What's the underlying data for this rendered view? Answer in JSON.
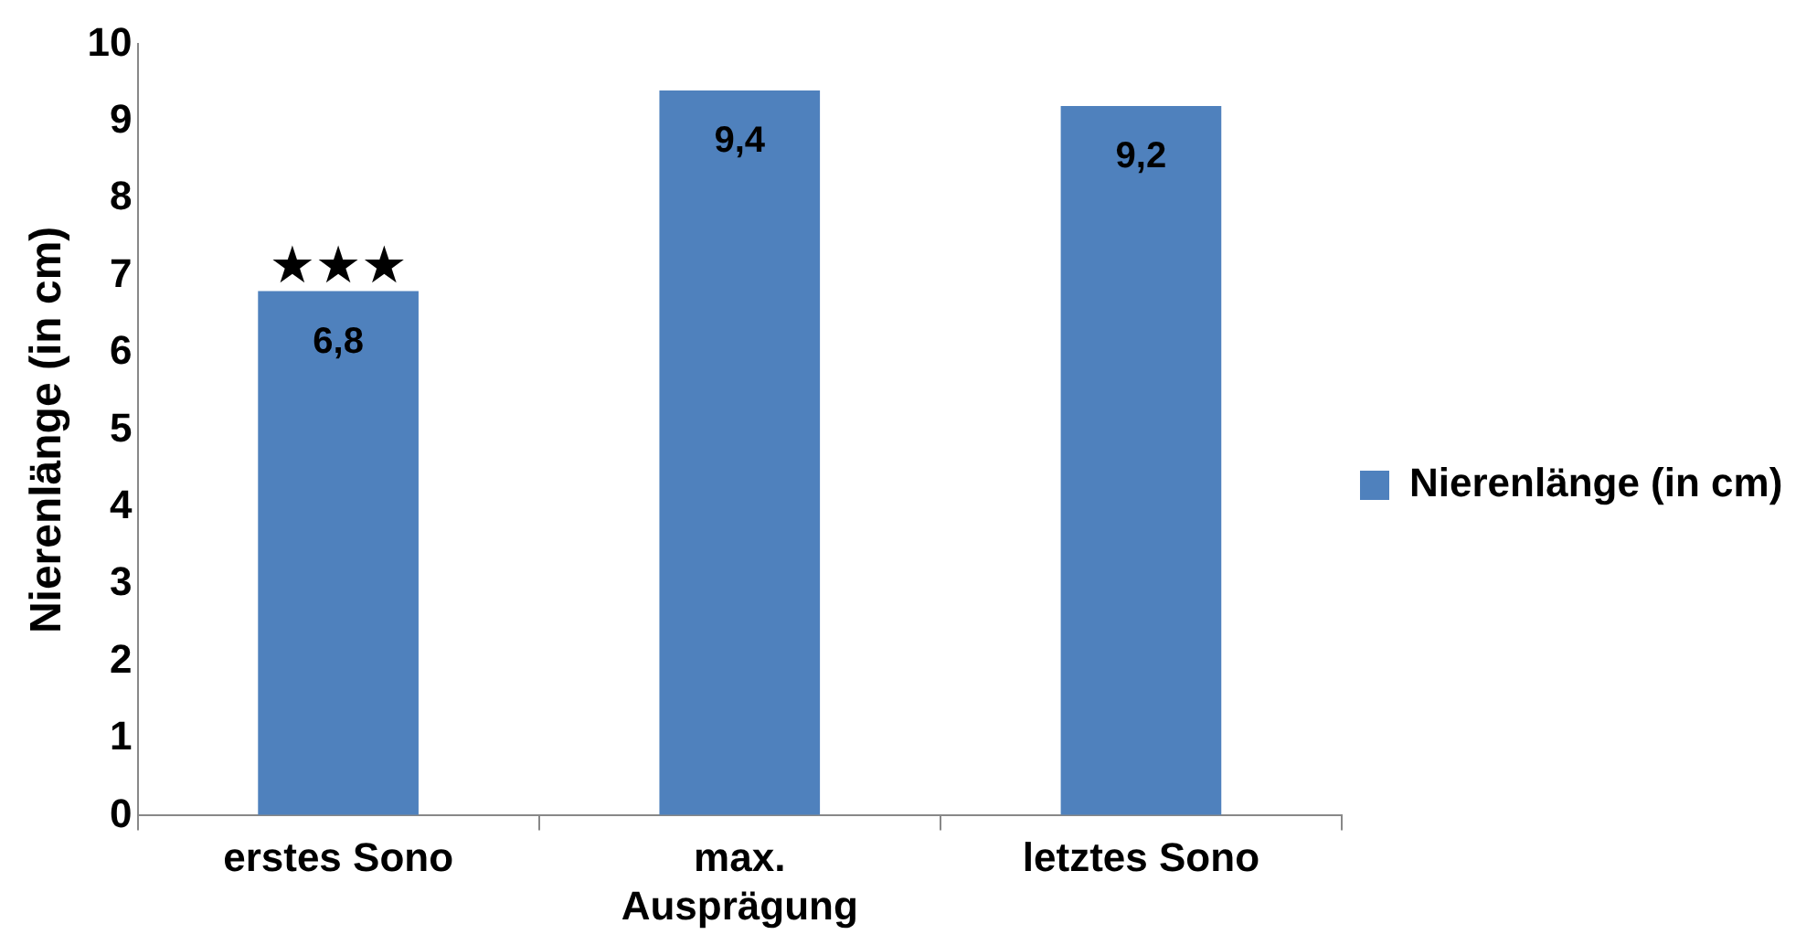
{
  "chart_data": {
    "type": "bar",
    "ylabel": "Nierenlänge (in cm)",
    "categories": [
      "erstes Sono",
      "max. Ausprägung",
      "letztes Sono"
    ],
    "series": [
      {
        "name": "Nierenlänge (in cm)",
        "color": "#4f81bd",
        "values": [
          6.8,
          9.4,
          9.2
        ],
        "value_labels": [
          "6,8",
          "9,4",
          "9,2"
        ]
      }
    ],
    "ylim": [
      0,
      10
    ],
    "yticks": [
      0,
      1,
      2,
      3,
      4,
      5,
      6,
      7,
      8,
      9,
      10
    ],
    "grid": false,
    "legend": "right",
    "annotations": [
      {
        "text": "★★★",
        "x": "erstes Sono",
        "y": 6.8
      }
    ]
  }
}
